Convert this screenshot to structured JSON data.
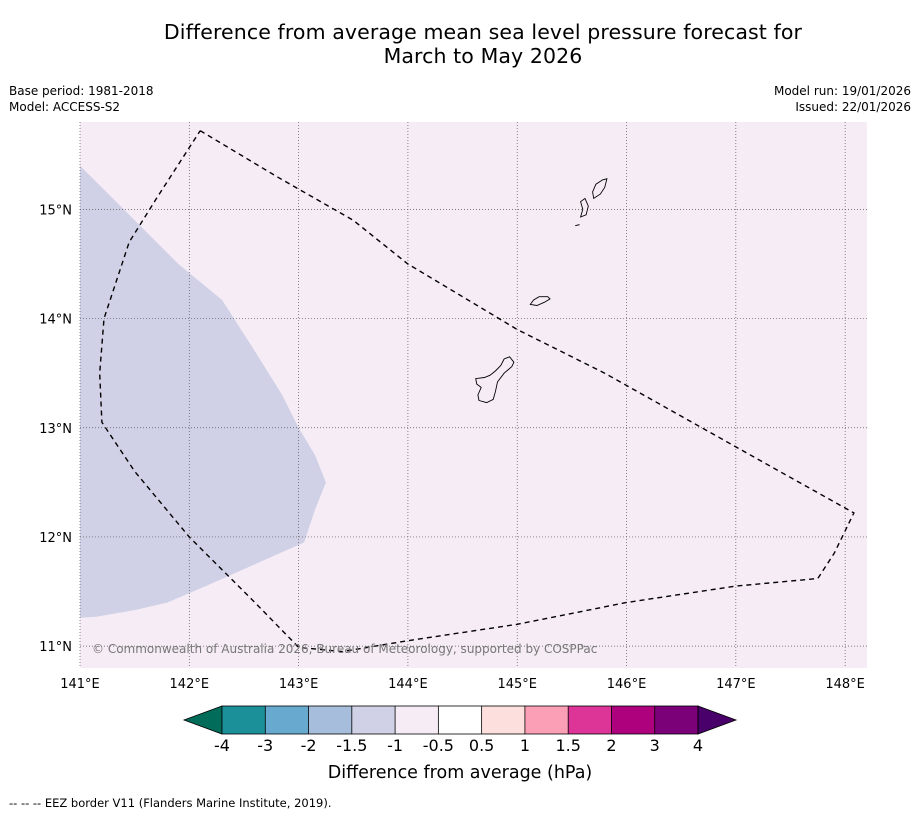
{
  "title": {
    "line1": "Difference from average mean sea level pressure forecast for",
    "line2": "March to May 2026"
  },
  "meta": {
    "base_period": "Base period: 1981-2018",
    "model": "Model: ACCESS-S2",
    "model_run": "Model run: 19/01/2026",
    "issued": "Issued: 22/01/2026"
  },
  "copyright": "© Commonwealth of Australia 2026, Bureau of Meteorology, supported by COSPPac",
  "map": {
    "lon_range": [
      141.0,
      148.2
    ],
    "lat_range": [
      10.8,
      15.8
    ],
    "lon_ticks": [
      {
        "value": 141,
        "label": "141°E"
      },
      {
        "value": 142,
        "label": "142°E"
      },
      {
        "value": 143,
        "label": "143°E"
      },
      {
        "value": 144,
        "label": "144°E"
      },
      {
        "value": 145,
        "label": "145°E"
      },
      {
        "value": 146,
        "label": "146°E"
      },
      {
        "value": 147,
        "label": "147°E"
      },
      {
        "value": 148,
        "label": "148°E"
      }
    ],
    "lat_ticks": [
      {
        "value": 11,
        "label": "11°N"
      },
      {
        "value": 12,
        "label": "12°N"
      },
      {
        "value": 13,
        "label": "13°N"
      },
      {
        "value": 14,
        "label": "14°N"
      },
      {
        "value": 15,
        "label": "15°N"
      }
    ],
    "background_color": "#f5ecf5",
    "anomaly_region": {
      "category": "-1.5 to -1 hPa",
      "color": "#d0d1e6",
      "polygon": [
        [
          141.0,
          15.4
        ],
        [
          141.2,
          15.2
        ],
        [
          141.5,
          14.9
        ],
        [
          141.9,
          14.5
        ],
        [
          142.3,
          14.17
        ],
        [
          142.6,
          13.7
        ],
        [
          142.85,
          13.3
        ],
        [
          143.0,
          13.0
        ],
        [
          143.15,
          12.75
        ],
        [
          143.25,
          12.5
        ],
        [
          143.15,
          12.25
        ],
        [
          143.05,
          11.95
        ],
        [
          142.6,
          11.75
        ],
        [
          142.15,
          11.55
        ],
        [
          141.8,
          11.4
        ],
        [
          141.5,
          11.33
        ],
        [
          141.15,
          11.27
        ],
        [
          141.0,
          11.26
        ]
      ]
    },
    "islands": [
      {
        "name": "Guam",
        "polygon": [
          [
            144.65,
            13.25
          ],
          [
            144.72,
            13.23
          ],
          [
            144.78,
            13.26
          ],
          [
            144.8,
            13.33
          ],
          [
            144.82,
            13.42
          ],
          [
            144.88,
            13.5
          ],
          [
            144.95,
            13.56
          ],
          [
            144.97,
            13.6
          ],
          [
            144.93,
            13.65
          ],
          [
            144.88,
            13.63
          ],
          [
            144.85,
            13.57
          ],
          [
            144.8,
            13.52
          ],
          [
            144.75,
            13.48
          ],
          [
            144.7,
            13.46
          ],
          [
            144.62,
            13.45
          ],
          [
            144.63,
            13.4
          ],
          [
            144.67,
            13.37
          ],
          [
            144.64,
            13.3
          ]
        ]
      },
      {
        "name": "Rota",
        "polygon": [
          [
            145.12,
            14.13
          ],
          [
            145.18,
            14.12
          ],
          [
            145.25,
            14.15
          ],
          [
            145.3,
            14.18
          ],
          [
            145.28,
            14.2
          ],
          [
            145.2,
            14.2
          ],
          [
            145.15,
            14.17
          ]
        ]
      },
      {
        "name": "Tinian",
        "polygon": [
          [
            145.58,
            14.93
          ],
          [
            145.63,
            14.95
          ],
          [
            145.65,
            15.03
          ],
          [
            145.62,
            15.1
          ],
          [
            145.58,
            15.07
          ],
          [
            145.6,
            15.0
          ]
        ]
      },
      {
        "name": "Saipan",
        "polygon": [
          [
            145.7,
            15.1
          ],
          [
            145.76,
            15.14
          ],
          [
            145.8,
            15.2
          ],
          [
            145.82,
            15.28
          ],
          [
            145.78,
            15.27
          ],
          [
            145.72,
            15.23
          ],
          [
            145.69,
            15.16
          ]
        ]
      }
    ],
    "aguijan": [
      [
        145.53,
        14.85
      ],
      [
        145.57,
        14.86
      ]
    ],
    "eez_border": [
      [
        142.1,
        15.72
      ],
      [
        142.8,
        15.3
      ],
      [
        143.5,
        14.9
      ],
      [
        144.0,
        14.5
      ],
      [
        144.5,
        14.2
      ],
      [
        145.0,
        13.9
      ],
      [
        145.8,
        13.5
      ],
      [
        146.6,
        13.05
      ],
      [
        147.4,
        12.6
      ],
      [
        148.08,
        12.22
      ],
      [
        147.9,
        11.85
      ],
      [
        147.75,
        11.62
      ],
      [
        147.0,
        11.55
      ],
      [
        146.0,
        11.4
      ],
      [
        145.0,
        11.2
      ],
      [
        144.0,
        11.05
      ],
      [
        143.4,
        10.95
      ],
      [
        143.0,
        10.99
      ],
      [
        142.6,
        11.4
      ],
      [
        142.0,
        12.0
      ],
      [
        141.5,
        12.6
      ],
      [
        141.2,
        13.05
      ],
      [
        141.18,
        13.5
      ],
      [
        141.22,
        14.0
      ],
      [
        141.45,
        14.7
      ],
      [
        141.7,
        15.1
      ],
      [
        142.1,
        15.72
      ]
    ]
  },
  "colorbar": {
    "label": "Difference from average (hPa)",
    "ticks": [
      "-4",
      "-3",
      "-2",
      "-1.5",
      "-1",
      "-0.5",
      "0.5",
      "1",
      "1.5",
      "2",
      "3",
      "4"
    ],
    "under_color": "#016c59",
    "over_color": "#49006a",
    "colors": [
      "#1c9099",
      "#67a9cf",
      "#a6bddb",
      "#d0d1e6",
      "#f5ecf5",
      "#ffffff",
      "#fde0dd",
      "#fa9fb5",
      "#dd3497",
      "#ae017e",
      "#7a0177"
    ]
  },
  "footnote": "--  --  -- EEZ border V11 (Flanders Marine Institute, 2019)."
}
